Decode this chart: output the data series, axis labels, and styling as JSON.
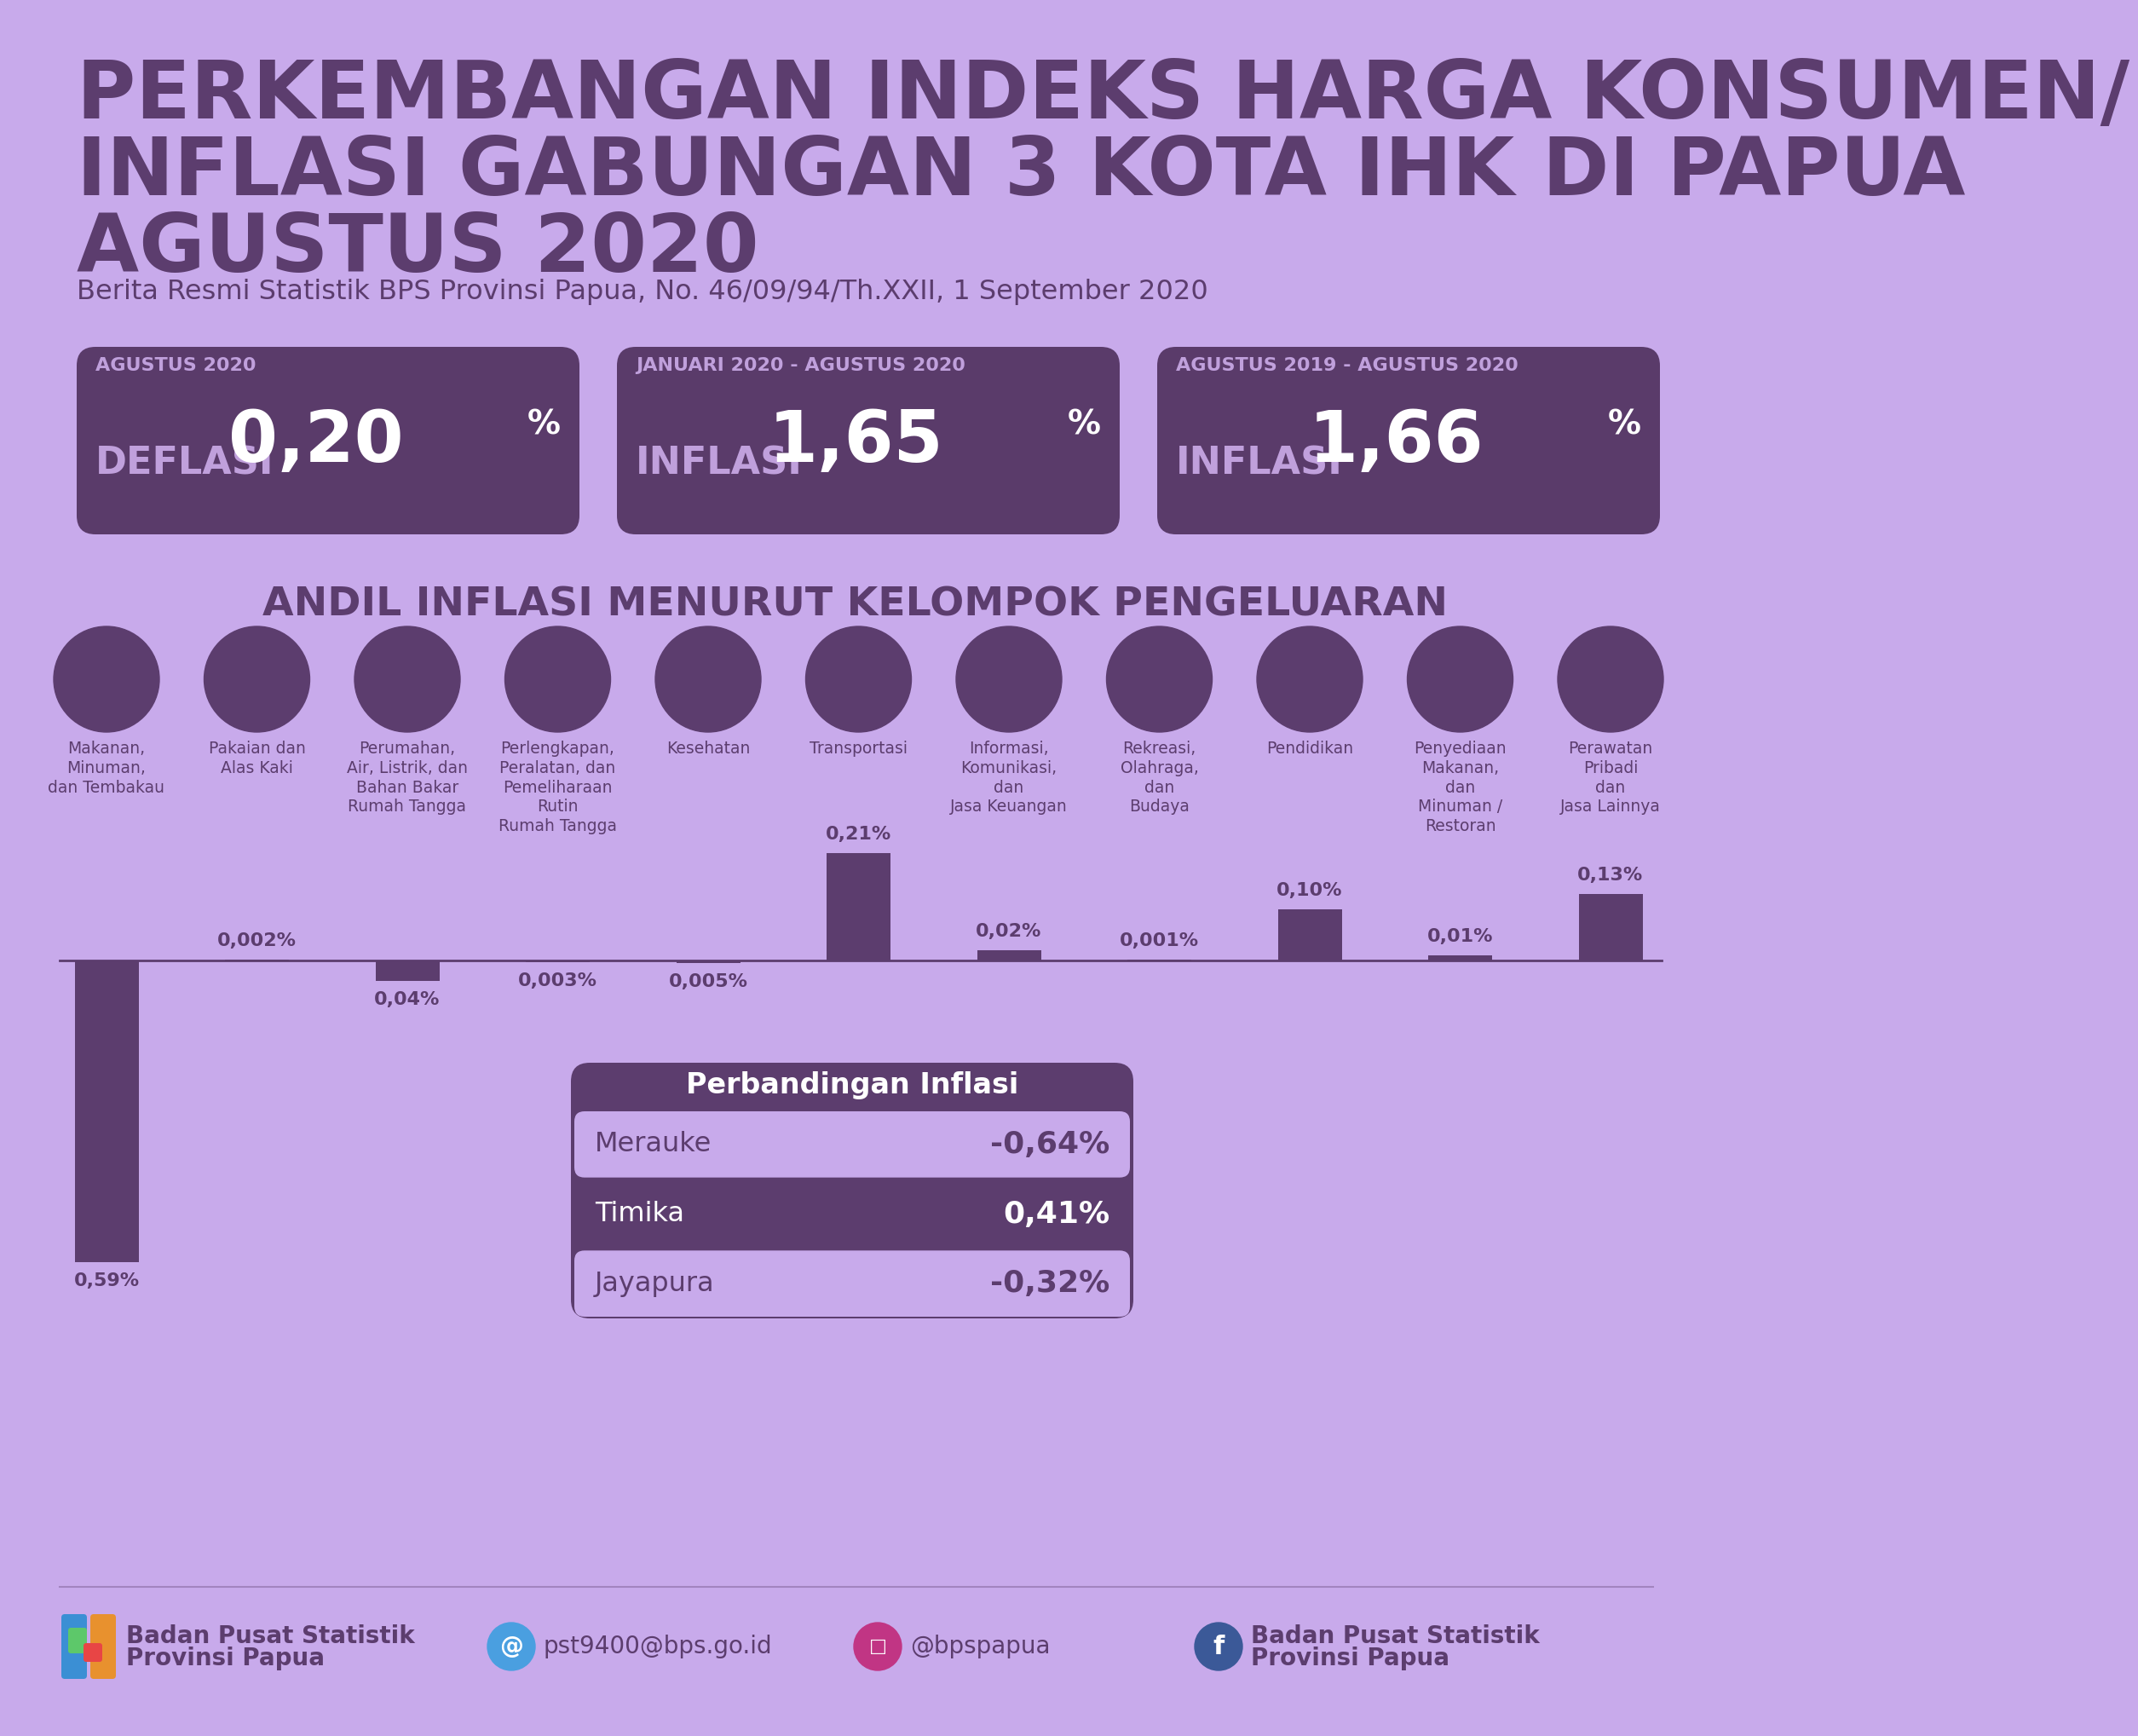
{
  "bg_color": "#C8AAEB",
  "dark_purple": "#5C3D6E",
  "card_purple": "#5A3B6A",
  "light_purple_text": "#C8AAEB",
  "title_line1": "PERKEMBANGAN INDEKS HARGA KONSUMEN/",
  "title_line2": "INFLASI GABUNGAN 3 KOTA IHK DI PAPUA",
  "title_line3": "AGUSTUS 2020",
  "subtitle": "Berita Resmi Statistik BPS Provinsi Papua, No. 46/09/94/Th.XXII, 1 September 2020",
  "card1_period": "AGUSTUS 2020",
  "card1_label": "DEFLASI",
  "card1_value": "0,20",
  "card2_period": "JANUARI 2020 - AGUSTUS 2020",
  "card2_label": "INFLASI",
  "card2_value": "1,65",
  "card3_period": "AGUSTUS 2019 - AGUSTUS 2020",
  "card3_label": "INFLASI",
  "card3_value": "1,66",
  "section_title": "ANDIL INFLASI MENURUT KELOMPOK PENGELUARAN",
  "categories": [
    "Makanan,\nMinuman,\ndan Tembakau",
    "Pakaian dan\nAlas Kaki",
    "Perumahan,\nAir, Listrik, dan\nBahan Bakar\nRumah Tangga",
    "Perlengkapan,\nPeralatan, dan\nPemeliharaan\nRutin\nRumah Tangga",
    "Kesehatan",
    "Transportasi",
    "Informasi,\nKomunikasi,\ndan\nJasa Keuangan",
    "Rekreasi,\nOlahraga,\ndan\nBudaya",
    "Pendidikan",
    "Penyediaan\nMakanan,\ndan\nMinuman /\nRestoran",
    "Perawatan\nPribadi\ndan\nJasa Lainnya"
  ],
  "values": [
    -0.59,
    0.002,
    -0.04,
    -0.003,
    -0.005,
    0.21,
    0.02,
    0.001,
    0.1,
    0.01,
    0.13
  ],
  "value_labels": [
    "0,59%",
    "0,002%",
    "0,04%",
    "0,003%",
    "0,005%",
    "0,21%",
    "0,02%",
    "0,001%",
    "0,10%",
    "0,01%",
    "0,13%"
  ],
  "bar_color": "#5C3D6E",
  "comparison_title": "Perbandingan Inflasi",
  "comparison_cities": [
    "Merauke",
    "Timika",
    "Jayapura"
  ],
  "comparison_values": [
    "-0,64%",
    "0,41%",
    "-0,32%"
  ],
  "comparison_row_dark": "#5C3D6E",
  "comparison_row_light": "#C8AAEB",
  "footer_email": "pst9400@bps.go.id",
  "footer_instagram": "@bpspapua",
  "footer_org1": "Badan Pusat Statistik",
  "footer_org2": "Provinsi Papua"
}
